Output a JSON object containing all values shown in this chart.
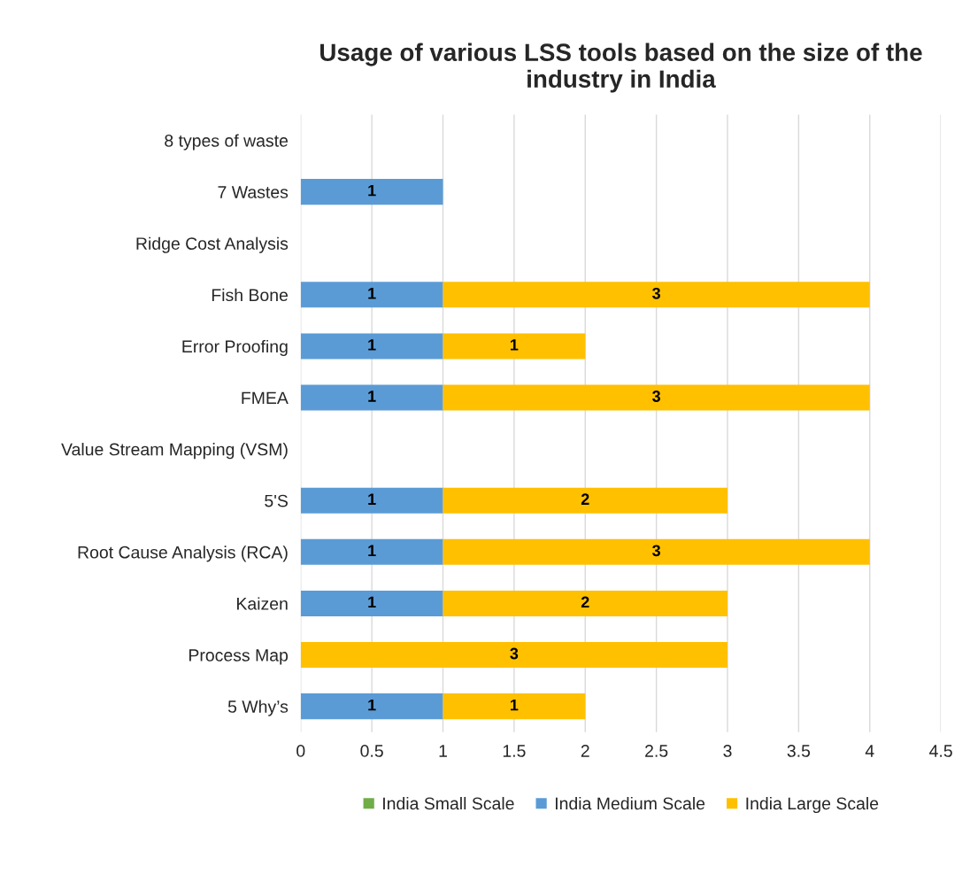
{
  "chart_data": {
    "type": "bar",
    "orientation": "horizontal",
    "stacked": true,
    "title": "Usage of various LSS tools based on the size of the industry in India",
    "categories": [
      "8 types of waste",
      "7 Wastes",
      "Ridge Cost Analysis",
      "Fish Bone",
      "Error Proofing",
      "FMEA",
      "Value Stream Mapping (VSM)",
      "5'S",
      "Root Cause Analysis (RCA)",
      "Kaizen",
      "Process Map",
      "5 Why’s"
    ],
    "series": [
      {
        "name": "India Small Scale",
        "color": "#70ad47",
        "values": [
          null,
          null,
          null,
          null,
          null,
          null,
          null,
          null,
          null,
          null,
          null,
          null
        ]
      },
      {
        "name": "India Medium Scale",
        "color": "#5b9bd5",
        "values": [
          null,
          1,
          null,
          1,
          1,
          1,
          null,
          1,
          1,
          1,
          null,
          1
        ]
      },
      {
        "name": "India Large Scale",
        "color": "#ffc000",
        "values": [
          null,
          null,
          null,
          3,
          1,
          3,
          null,
          2,
          3,
          2,
          3,
          1
        ]
      }
    ],
    "xlim": [
      0,
      4.5
    ],
    "xticks": [
      0,
      0.5,
      1,
      1.5,
      2,
      2.5,
      3,
      3.5,
      4,
      4.5
    ],
    "grid": "x",
    "legend": "bottom",
    "data_labels": true
  }
}
